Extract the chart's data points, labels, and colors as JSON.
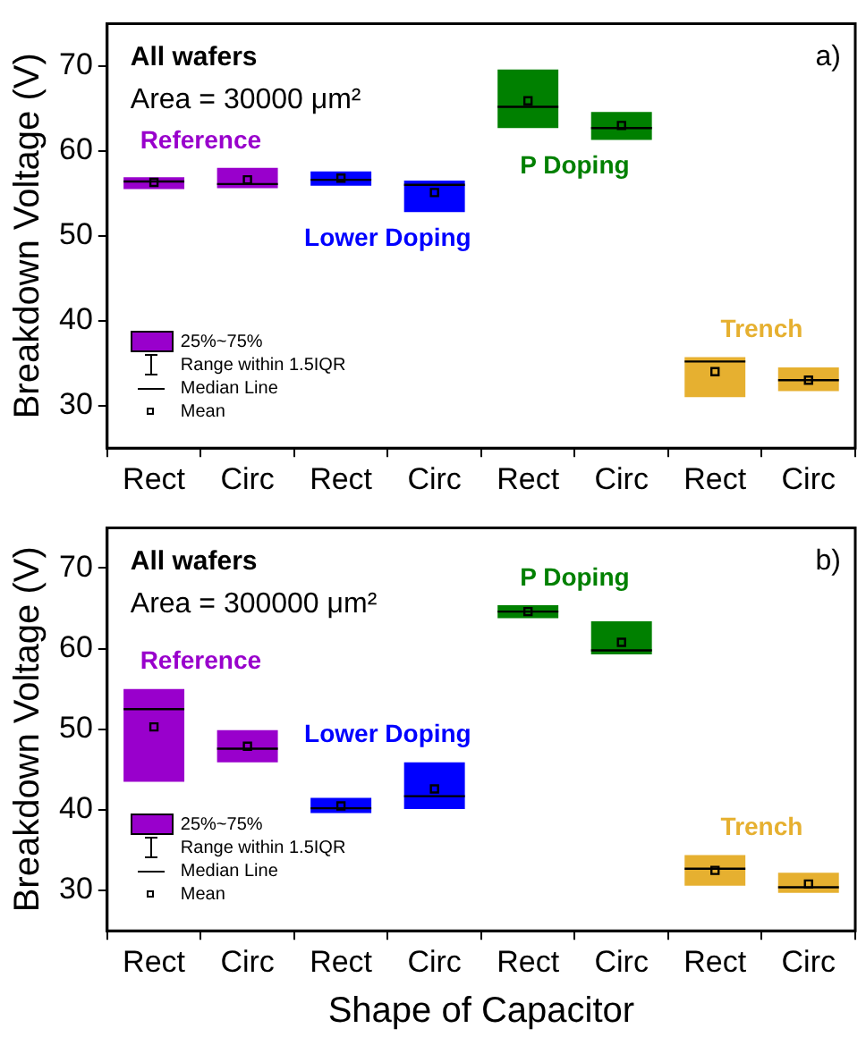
{
  "chart_data": [
    {
      "type": "box",
      "ylabel": "Breakdown Voltage (V)",
      "categories": [
        "Rect",
        "Circ",
        "Rect",
        "Circ",
        "Rect",
        "Circ",
        "Rect",
        "Circ"
      ],
      "ylim": [
        25,
        75
      ],
      "yticks": [
        30,
        40,
        50,
        60,
        70
      ],
      "grid": false,
      "annotations": [
        "All wafers",
        "Area = 30000 μm²",
        "a)",
        "25%~75%",
        "Range within 1.5IQR",
        "Median Line",
        "Mean"
      ],
      "series": [
        {
          "name": "Reference",
          "color": "#9900cc",
          "boxes": [
            {
              "low": 55.5,
              "q1": 55.5,
              "median": 56.4,
              "q3": 56.9,
              "high": 56.9,
              "mean": 56.3
            },
            {
              "low": 55.6,
              "q1": 55.6,
              "median": 56.1,
              "q3": 58.0,
              "high": 58.0,
              "mean": 56.6
            },
            null,
            null,
            null,
            null,
            null,
            null
          ]
        },
        {
          "name": "Lower Doping",
          "color": "#0000ff",
          "boxes": [
            null,
            null,
            {
              "low": 55.9,
              "q1": 55.9,
              "median": 56.6,
              "q3": 57.6,
              "high": 57.6,
              "mean": 56.8
            },
            {
              "low": 52.8,
              "q1": 52.8,
              "median": 56.0,
              "q3": 56.5,
              "high": 56.5,
              "mean": 55.1
            },
            null,
            null,
            null,
            null
          ]
        },
        {
          "name": "P Doping",
          "color": "#008000",
          "boxes": [
            null,
            null,
            null,
            null,
            {
              "low": 62.7,
              "q1": 62.7,
              "median": 65.2,
              "q3": 69.6,
              "high": 69.6,
              "mean": 65.9
            },
            {
              "low": 61.3,
              "q1": 61.3,
              "median": 62.7,
              "q3": 64.6,
              "high": 64.6,
              "mean": 63.0
            },
            null,
            null
          ]
        },
        {
          "name": "Trench",
          "color": "#e6b030",
          "boxes": [
            null,
            null,
            null,
            null,
            null,
            null,
            {
              "low": 31.0,
              "q1": 31.0,
              "median": 35.2,
              "q3": 35.7,
              "high": 35.7,
              "mean": 34.0
            },
            {
              "low": 31.7,
              "q1": 31.7,
              "median": 33.0,
              "q3": 34.5,
              "high": 34.5,
              "mean": 33.0
            }
          ]
        }
      ]
    },
    {
      "type": "box",
      "xlabel": "Shape of Capacitor",
      "ylabel": "Breakdown Voltage (V)",
      "categories": [
        "Rect",
        "Circ",
        "Rect",
        "Circ",
        "Rect",
        "Circ",
        "Rect",
        "Circ"
      ],
      "ylim": [
        25,
        75
      ],
      "yticks": [
        30,
        40,
        50,
        60,
        70
      ],
      "grid": false,
      "annotations": [
        "All wafers",
        "Area = 300000 μm²",
        "b)",
        "25%~75%",
        "Range within 1.5IQR",
        "Median Line",
        "Mean"
      ],
      "series": [
        {
          "name": "Reference",
          "color": "#9900cc",
          "boxes": [
            {
              "low": 43.5,
              "q1": 43.5,
              "median": 52.5,
              "q3": 55.0,
              "high": 55.0,
              "mean": 50.3
            },
            {
              "low": 45.9,
              "q1": 45.9,
              "median": 47.6,
              "q3": 49.9,
              "high": 49.9,
              "mean": 47.9
            },
            null,
            null,
            null,
            null,
            null,
            null
          ]
        },
        {
          "name": "Lower Doping",
          "color": "#0000ff",
          "boxes": [
            null,
            null,
            {
              "low": 39.6,
              "q1": 39.6,
              "median": 40.2,
              "q3": 41.5,
              "high": 41.5,
              "mean": 40.5
            },
            {
              "low": 40.1,
              "q1": 40.1,
              "median": 41.7,
              "q3": 45.9,
              "high": 45.9,
              "mean": 42.6
            },
            null,
            null,
            null,
            null
          ]
        },
        {
          "name": "P Doping",
          "color": "#008000",
          "boxes": [
            null,
            null,
            null,
            null,
            {
              "low": 63.8,
              "q1": 63.8,
              "median": 64.6,
              "q3": 65.4,
              "high": 65.4,
              "mean": 64.6
            },
            {
              "low": 59.3,
              "q1": 59.3,
              "median": 59.8,
              "q3": 63.4,
              "high": 63.4,
              "mean": 60.8
            },
            null,
            null
          ]
        },
        {
          "name": "Trench",
          "color": "#e6b030",
          "boxes": [
            null,
            null,
            null,
            null,
            null,
            null,
            {
              "low": 30.6,
              "q1": 30.6,
              "median": 32.7,
              "q3": 34.4,
              "high": 34.4,
              "mean": 32.5
            },
            {
              "low": 29.7,
              "q1": 29.7,
              "median": 30.4,
              "q3": 32.2,
              "high": 32.2,
              "mean": 30.8
            }
          ]
        }
      ]
    }
  ]
}
